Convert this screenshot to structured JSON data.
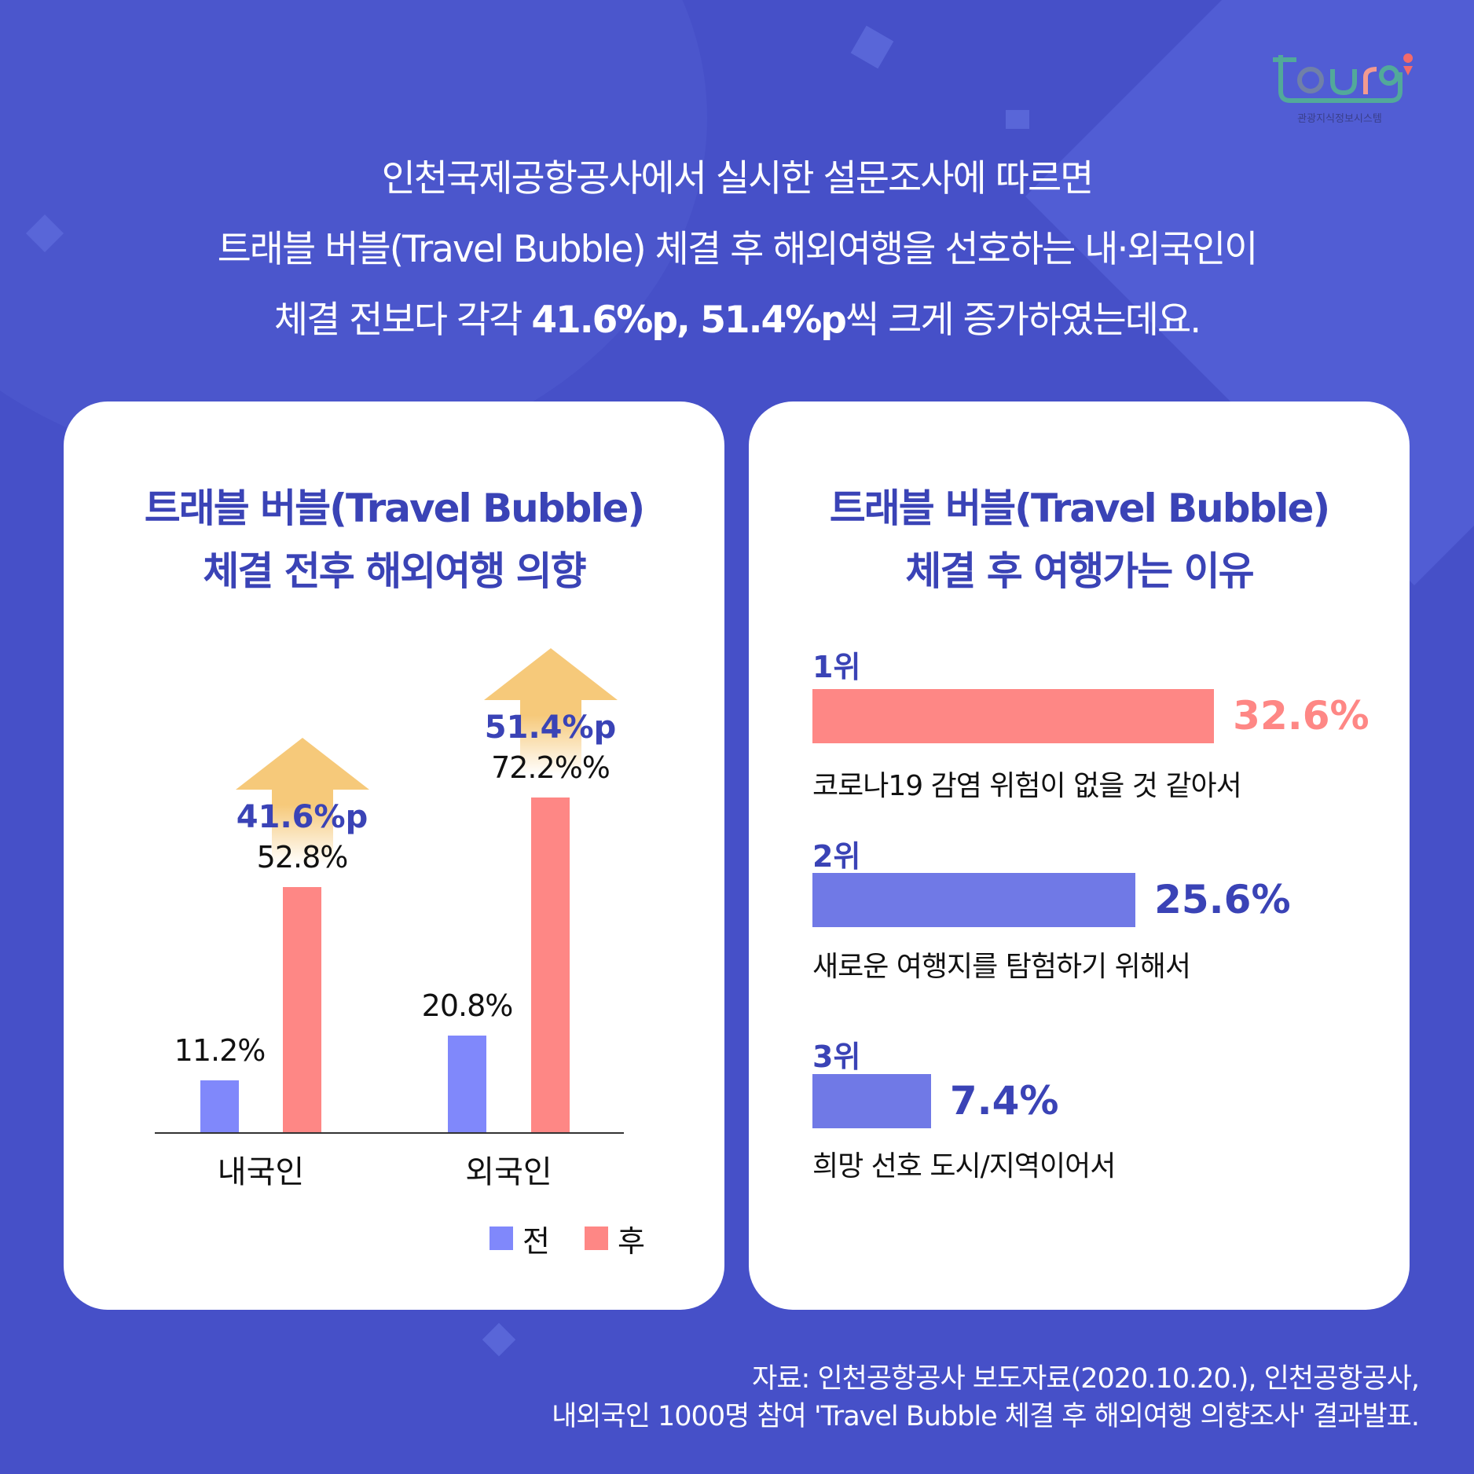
{
  "logo": {
    "text": "tourg",
    "subtitle": "관광지식정보시스템"
  },
  "headline": {
    "line1": "인천국제공항공사에서 실시한 설문조사에 따르면",
    "line2": "트래블 버블(Travel Bubble) 체결 후 해외여행을 선호하는 내·외국인이",
    "line3_pre": "체결 전보다 각각 ",
    "line3_bold1": "41.6%p, 51.4%p",
    "line3_post": "씩 크게 증가하였는데요."
  },
  "left_card": {
    "title1": "트래블 버블(Travel Bubble)",
    "title2": "체결 전후 해외여행 의향"
  },
  "right_card": {
    "title1": "트래블 버블(Travel Bubble)",
    "title2": "체결 후 여행가는 이유"
  },
  "chart_data": [
    {
      "type": "bar",
      "categories": [
        "내국인",
        "외국인"
      ],
      "series": [
        {
          "name": "전",
          "values": [
            11.2,
            20.8
          ],
          "labels": [
            "11.2%",
            "20.8%"
          ],
          "color": "#8088fb"
        },
        {
          "name": "후",
          "values": [
            52.8,
            72.2
          ],
          "labels": [
            "52.8%",
            "72.2%%"
          ],
          "color": "#fe8785"
        }
      ],
      "annotations": [
        "41.6%p",
        "51.4%p"
      ],
      "arrow_color": "#f6c97a",
      "legend": "bottom-right"
    },
    {
      "type": "bar",
      "orientation": "horizontal",
      "items": [
        {
          "rank": "1위",
          "value": 32.6,
          "label": "32.6%",
          "reason": "코로나19 감염 위험이 없을 것 같아서",
          "color": "#fe8785"
        },
        {
          "rank": "2위",
          "value": 25.6,
          "label": "25.6%",
          "reason": "새로운 여행지를 탐험하기 위해서",
          "color": "#7079e6"
        },
        {
          "rank": "3위",
          "value": 7.4,
          "label": "7.4%",
          "reason": "희망 선호 도시/지역이어서",
          "color": "#7079e6"
        }
      ],
      "label_colors": [
        "#fe8785",
        "#3a43b6",
        "#3a43b6"
      ]
    }
  ],
  "footer": {
    "line1": "자료: 인천공항공사 보도자료(2020.10.20.), 인천공항공사,",
    "line2": "내외국인 1000명 참여 'Travel Bubble 체결 후 해외여행 의향조사' 결과발표."
  }
}
